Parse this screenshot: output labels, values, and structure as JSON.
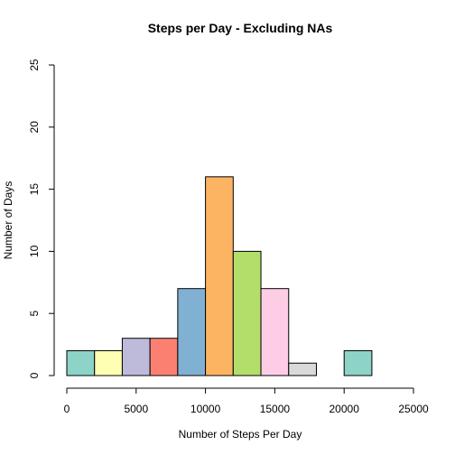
{
  "chart_data": {
    "type": "bar",
    "title": "Steps per Day - Excluding NAs",
    "xlabel": "Number of Steps Per Day",
    "ylabel": "Number of Days",
    "bins": [
      {
        "from": 0,
        "to": 2000,
        "count": 2,
        "color": "#8DD3C7"
      },
      {
        "from": 2000,
        "to": 4000,
        "count": 2,
        "color": "#FFFFB3"
      },
      {
        "from": 4000,
        "to": 6000,
        "count": 3,
        "color": "#BEBADA"
      },
      {
        "from": 6000,
        "to": 8000,
        "count": 3,
        "color": "#FB8072"
      },
      {
        "from": 8000,
        "to": 10000,
        "count": 7,
        "color": "#80B1D3"
      },
      {
        "from": 10000,
        "to": 12000,
        "count": 16,
        "color": "#FDB462"
      },
      {
        "from": 12000,
        "to": 14000,
        "count": 10,
        "color": "#B3DE69"
      },
      {
        "from": 14000,
        "to": 16000,
        "count": 7,
        "color": "#FCCDE5"
      },
      {
        "from": 16000,
        "to": 18000,
        "count": 1,
        "color": "#D9D9D9"
      },
      {
        "from": 18000,
        "to": 20000,
        "count": 0,
        "color": "#BC80BD"
      },
      {
        "from": 20000,
        "to": 22000,
        "count": 2,
        "color": "#8DD3C7"
      }
    ],
    "xlim": [
      0,
      25000
    ],
    "ylim": [
      0,
      25
    ],
    "x_ticks": [
      0,
      5000,
      10000,
      15000,
      20000,
      25000
    ],
    "y_ticks": [
      0,
      5,
      10,
      15,
      20,
      25
    ],
    "grid": false,
    "legend": "none"
  }
}
